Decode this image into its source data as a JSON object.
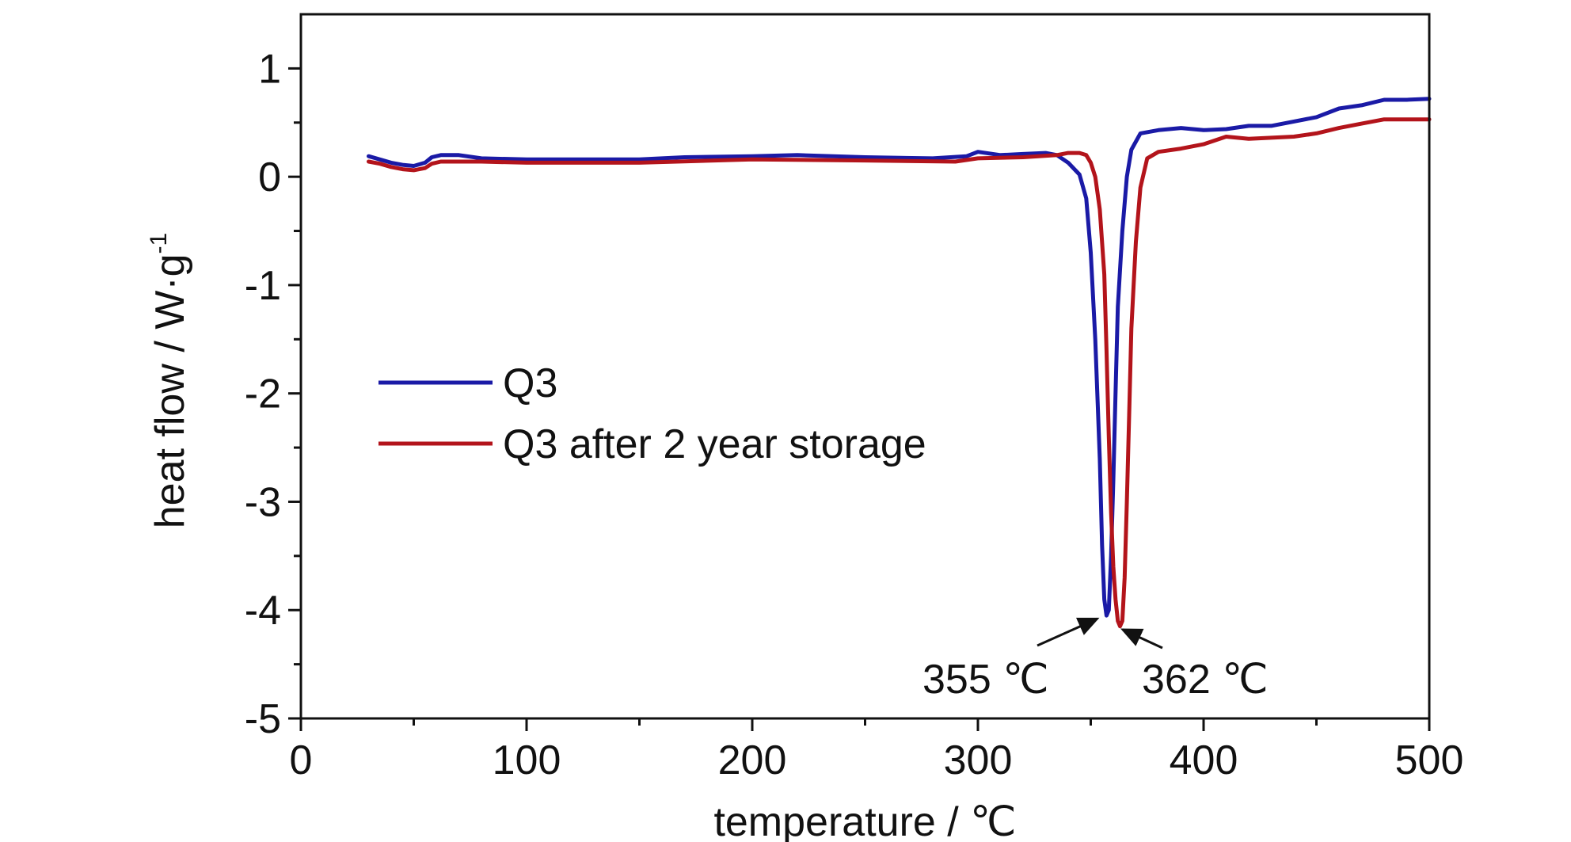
{
  "chart_data": {
    "type": "line",
    "xlabel": "temperature / ℃",
    "ylabel_main": "heat flow / W·g",
    "ylabel_sup": "-1",
    "xlim": [
      0,
      500
    ],
    "ylim": [
      -5,
      1.5
    ],
    "x_ticks": [
      0,
      100,
      200,
      300,
      400,
      500
    ],
    "y_ticks": [
      1,
      0,
      -1,
      -2,
      -3,
      -4,
      -5
    ],
    "x_tick_labels": [
      "0",
      "100",
      "200",
      "300",
      "400",
      "500"
    ],
    "y_tick_labels": [
      "1",
      "0",
      "-1",
      "-2",
      "-3",
      "-4",
      "-5"
    ],
    "legend_position": "center-left",
    "series": [
      {
        "name": "Q3",
        "color": "#1a1aa6",
        "points": [
          [
            30,
            0.19
          ],
          [
            35,
            0.16
          ],
          [
            40,
            0.13
          ],
          [
            45,
            0.11
          ],
          [
            50,
            0.1
          ],
          [
            55,
            0.13
          ],
          [
            58,
            0.18
          ],
          [
            62,
            0.2
          ],
          [
            70,
            0.2
          ],
          [
            80,
            0.17
          ],
          [
            100,
            0.16
          ],
          [
            150,
            0.16
          ],
          [
            170,
            0.18
          ],
          [
            200,
            0.19
          ],
          [
            220,
            0.2
          ],
          [
            250,
            0.18
          ],
          [
            280,
            0.17
          ],
          [
            295,
            0.19
          ],
          [
            300,
            0.23
          ],
          [
            310,
            0.2
          ],
          [
            320,
            0.21
          ],
          [
            330,
            0.22
          ],
          [
            335,
            0.2
          ],
          [
            340,
            0.13
          ],
          [
            345,
            0.02
          ],
          [
            348,
            -0.2
          ],
          [
            350,
            -0.7
          ],
          [
            352,
            -1.5
          ],
          [
            354,
            -2.6
          ],
          [
            355,
            -3.4
          ],
          [
            356,
            -3.9
          ],
          [
            357,
            -4.05
          ],
          [
            358,
            -4.0
          ],
          [
            359,
            -3.5
          ],
          [
            360,
            -2.8
          ],
          [
            361,
            -2.0
          ],
          [
            362,
            -1.2
          ],
          [
            364,
            -0.5
          ],
          [
            366,
            0.0
          ],
          [
            368,
            0.25
          ],
          [
            372,
            0.4
          ],
          [
            380,
            0.43
          ],
          [
            390,
            0.45
          ],
          [
            400,
            0.43
          ],
          [
            410,
            0.44
          ],
          [
            420,
            0.47
          ],
          [
            430,
            0.47
          ],
          [
            440,
            0.51
          ],
          [
            450,
            0.55
          ],
          [
            460,
            0.63
          ],
          [
            470,
            0.66
          ],
          [
            480,
            0.71
          ],
          [
            490,
            0.71
          ],
          [
            500,
            0.72
          ]
        ]
      },
      {
        "name": "Q3 after 2 year storage",
        "color": "#b3141b",
        "points": [
          [
            30,
            0.14
          ],
          [
            35,
            0.12
          ],
          [
            40,
            0.09
          ],
          [
            45,
            0.07
          ],
          [
            50,
            0.06
          ],
          [
            55,
            0.08
          ],
          [
            58,
            0.12
          ],
          [
            62,
            0.14
          ],
          [
            80,
            0.14
          ],
          [
            100,
            0.13
          ],
          [
            150,
            0.13
          ],
          [
            200,
            0.16
          ],
          [
            250,
            0.15
          ],
          [
            290,
            0.14
          ],
          [
            300,
            0.17
          ],
          [
            320,
            0.18
          ],
          [
            335,
            0.2
          ],
          [
            340,
            0.22
          ],
          [
            345,
            0.22
          ],
          [
            348,
            0.2
          ],
          [
            350,
            0.13
          ],
          [
            352,
            0.0
          ],
          [
            354,
            -0.3
          ],
          [
            356,
            -0.9
          ],
          [
            357,
            -1.6
          ],
          [
            358,
            -2.4
          ],
          [
            359,
            -3.1
          ],
          [
            360,
            -3.6
          ],
          [
            361,
            -3.9
          ],
          [
            362,
            -4.1
          ],
          [
            363,
            -4.15
          ],
          [
            364,
            -4.1
          ],
          [
            365,
            -3.7
          ],
          [
            366,
            -3.0
          ],
          [
            367,
            -2.2
          ],
          [
            368,
            -1.4
          ],
          [
            370,
            -0.6
          ],
          [
            372,
            -0.1
          ],
          [
            375,
            0.17
          ],
          [
            380,
            0.23
          ],
          [
            390,
            0.26
          ],
          [
            400,
            0.3
          ],
          [
            410,
            0.37
          ],
          [
            420,
            0.35
          ],
          [
            430,
            0.36
          ],
          [
            440,
            0.37
          ],
          [
            450,
            0.4
          ],
          [
            460,
            0.45
          ],
          [
            470,
            0.49
          ],
          [
            480,
            0.53
          ],
          [
            490,
            0.53
          ],
          [
            500,
            0.53
          ]
        ]
      }
    ],
    "annotations": [
      {
        "text": "355 ℃",
        "x": 355,
        "y": -4.05
      },
      {
        "text": "362 ℃",
        "x": 362,
        "y": -4.15
      }
    ]
  }
}
